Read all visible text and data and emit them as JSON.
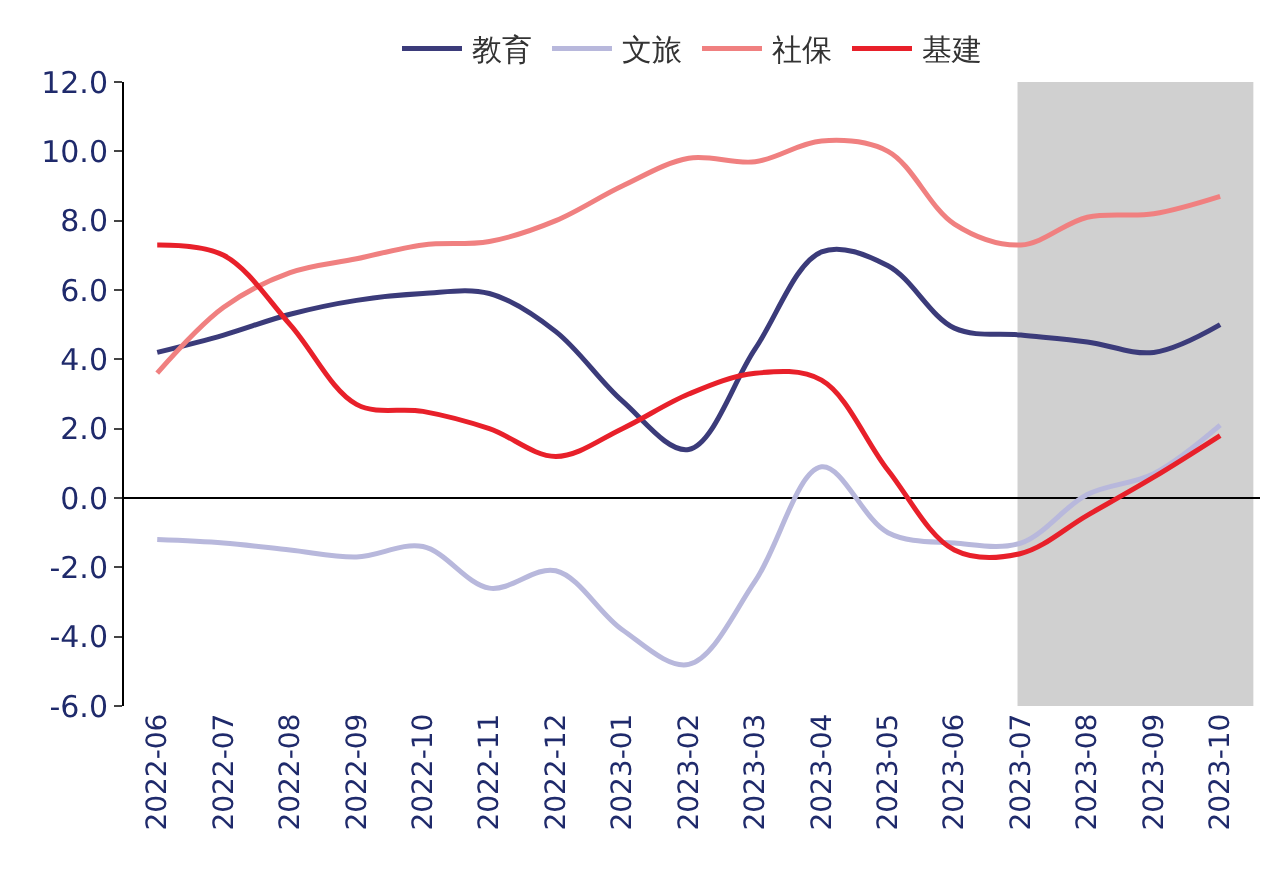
{
  "chart_data": {
    "type": "line",
    "categories": [
      "2022-06",
      "2022-07",
      "2022-08",
      "2022-09",
      "2022-10",
      "2022-11",
      "2022-12",
      "2023-01",
      "2023-02",
      "2023-03",
      "2023-04",
      "2023-05",
      "2023-06",
      "2023-07",
      "2023-08",
      "2023-09",
      "2023-10"
    ],
    "series": [
      {
        "name": "教育",
        "color": "#3b3b7a",
        "values": [
          4.2,
          4.7,
          5.3,
          5.7,
          5.9,
          5.9,
          4.8,
          2.8,
          1.4,
          4.3,
          7.1,
          6.7,
          4.9,
          4.7,
          4.5,
          4.2,
          5.0
        ]
      },
      {
        "name": "文旅",
        "color": "#b8b8dc",
        "values": [
          -1.2,
          -1.3,
          -1.5,
          -1.7,
          -1.4,
          -2.6,
          -2.1,
          -3.8,
          -4.8,
          -2.4,
          0.9,
          -1.0,
          -1.3,
          -1.3,
          0.1,
          0.7,
          2.1
        ]
      },
      {
        "name": "社保",
        "color": "#f08080",
        "values": [
          3.6,
          5.5,
          6.5,
          6.9,
          7.3,
          7.4,
          8.0,
          9.0,
          9.8,
          9.7,
          10.3,
          10.0,
          7.9,
          7.3,
          8.1,
          8.2,
          8.7
        ]
      },
      {
        "name": "基建",
        "color": "#e8202a",
        "values": [
          7.3,
          7.0,
          5.0,
          2.7,
          2.5,
          2.0,
          1.2,
          2.0,
          3.0,
          3.6,
          3.4,
          0.8,
          -1.5,
          -1.6,
          -0.5,
          0.6,
          1.8
        ]
      }
    ],
    "ylim": [
      -6,
      12
    ],
    "yticks": [
      {
        "value": -6,
        "label": "-6.0"
      },
      {
        "value": -4,
        "label": "-4.0"
      },
      {
        "value": -2,
        "label": "-2.0"
      },
      {
        "value": 0,
        "label": "0.0"
      },
      {
        "value": 2,
        "label": "2.0"
      },
      {
        "value": 4,
        "label": "4.0"
      },
      {
        "value": 6,
        "label": "6.0"
      },
      {
        "value": 8,
        "label": "8.0"
      },
      {
        "value": 10,
        "label": "10.0"
      },
      {
        "value": 12,
        "label": "12.0"
      }
    ],
    "bands": [
      {
        "axis": "x",
        "from": "2023-07",
        "to": "2023-10",
        "color": "#d0d0d0"
      }
    ],
    "legend": "top",
    "marker": "none",
    "line_style": "solid"
  }
}
